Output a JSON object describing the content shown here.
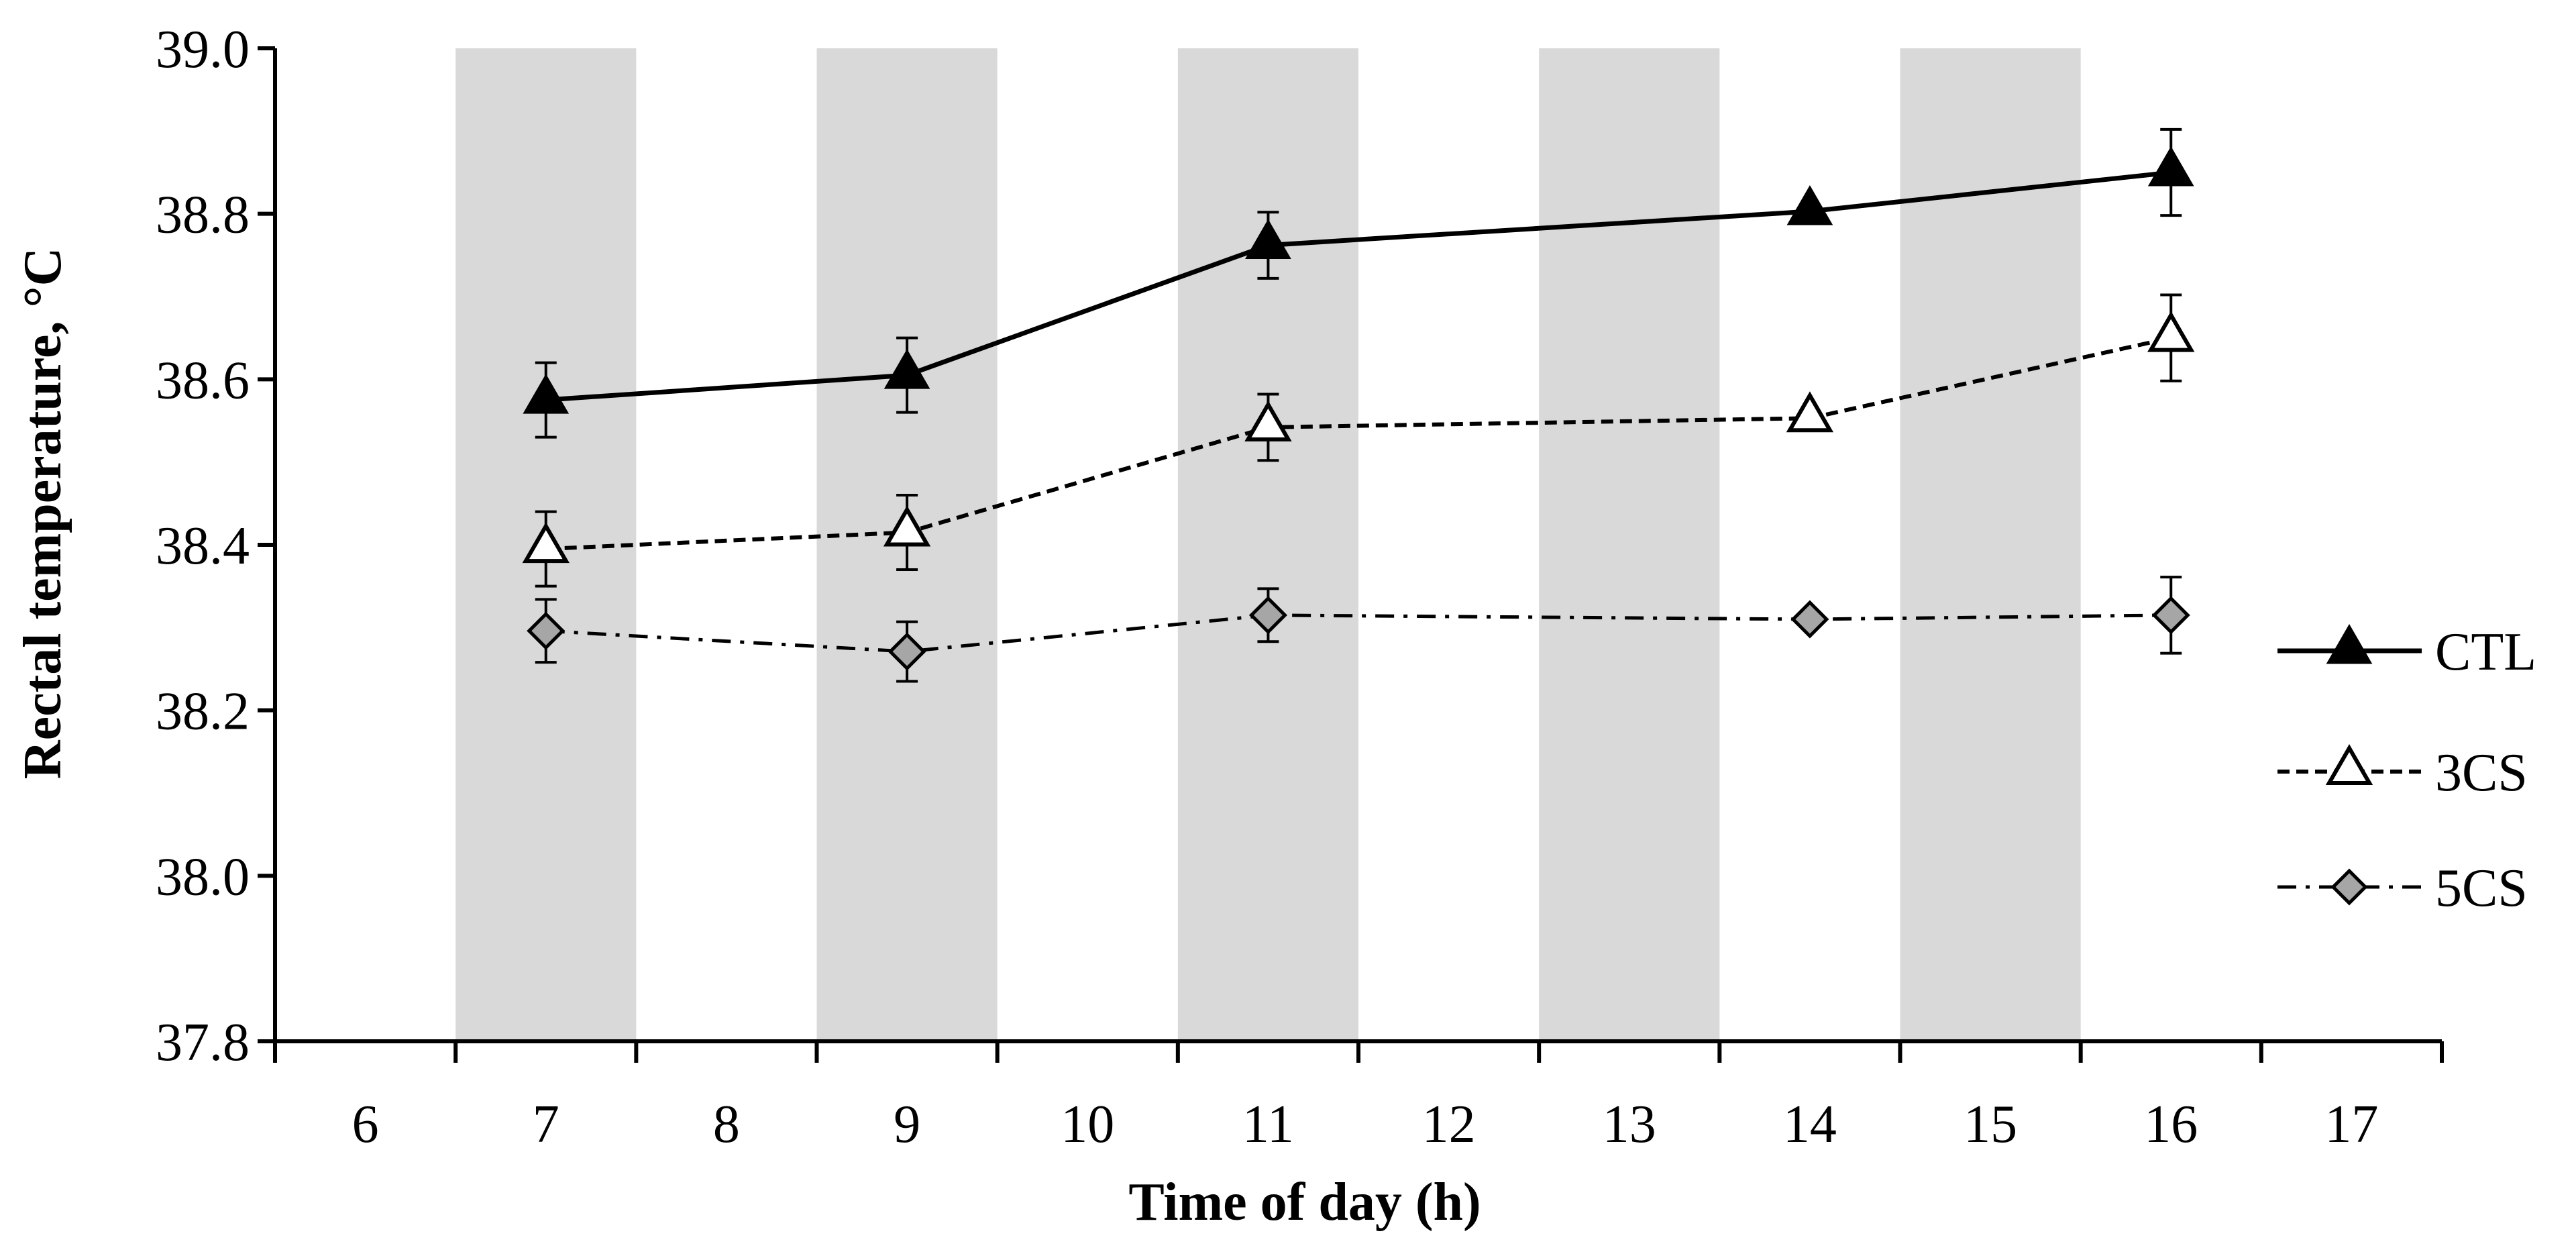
{
  "chart_data": {
    "type": "line",
    "title": "",
    "xlabel": "Time of day  (h)",
    "ylabel": "Rectal temperature, °C",
    "x_ticks": [
      "6",
      "7",
      "8",
      "9",
      "10",
      "11",
      "12",
      "13",
      "14",
      "15",
      "16",
      "17"
    ],
    "y_ticks": [
      "37.8",
      "38.0",
      "38.2",
      "38.4",
      "38.6",
      "38.8",
      "39.0"
    ],
    "ylim": [
      37.8,
      39.0
    ],
    "shaded_x_ticks": [
      "7",
      "9",
      "11",
      "13",
      "15"
    ],
    "grid": false,
    "legend_position": "right",
    "categories": [
      "7",
      "9",
      "11",
      "14",
      "16"
    ],
    "series": [
      {
        "name": "CTL",
        "marker": "filled-triangle",
        "line_style": "solid",
        "color": "#000000",
        "values": [
          38.575,
          38.605,
          38.762,
          38.803,
          38.85
        ],
        "errors": [
          0.045,
          0.045,
          0.04,
          0.0,
          0.052
        ]
      },
      {
        "name": "3CS",
        "marker": "open-triangle",
        "line_style": "dashed",
        "color": "#000000",
        "values": [
          38.395,
          38.415,
          38.542,
          38.553,
          38.65
        ],
        "errors": [
          0.045,
          0.045,
          0.04,
          0.0,
          0.052
        ]
      },
      {
        "name": "5CS",
        "marker": "gray-diamond",
        "line_style": "dash-dot",
        "color": "#a6a6a6",
        "values": [
          38.296,
          38.271,
          38.315,
          38.31,
          38.315
        ],
        "errors": [
          0.038,
          0.036,
          0.032,
          0.0,
          0.046
        ]
      }
    ]
  }
}
